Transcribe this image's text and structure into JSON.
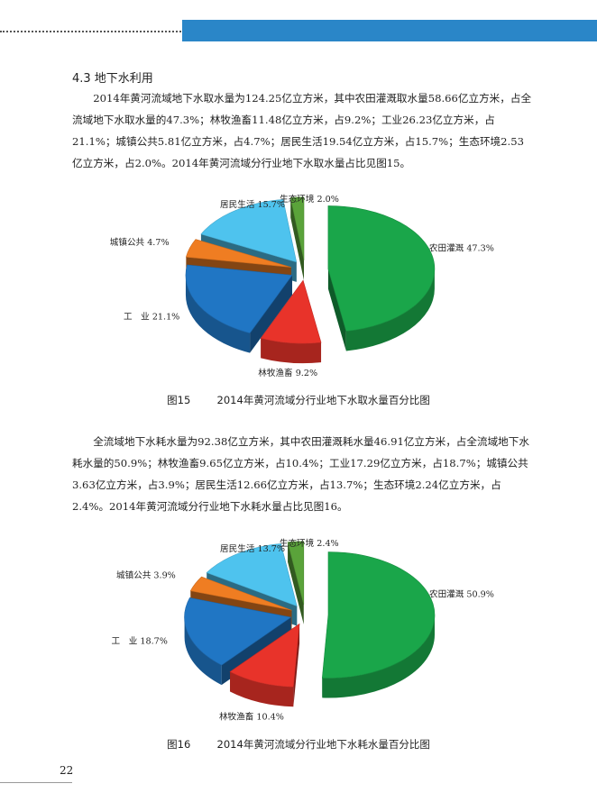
{
  "header": {
    "accent_color": "#2a86c8"
  },
  "section_title": "4.3 地下水利用",
  "paragraph1": "2014年黄河流域地下水取水量为124.25亿立方米，其中农田灌溉取水量58.66亿立方米，占全流域地下水取水量的47.3%；林牧渔畜11.48亿立方米，占9.2%；工业26.23亿立方米，占21.1%；城镇公共5.81亿立方米，占4.7%；居民生活19.54亿立方米，占15.7%；生态环境2.53亿立方米，占2.0%。2014年黄河流域分行业地下水取水量占比见图15。",
  "paragraph2": "全流域地下水耗水量为92.38亿立方米，其中农田灌溉耗水量46.91亿立方米，占全流域地下水耗水量的50.9%；林牧渔畜9.65亿立方米，占10.4%；工业17.29亿立方米，占18.7%；城镇公共3.63亿立方米，占3.9%；居民生活12.66亿立方米，占13.7%；生态环境2.24亿立方米，占2.4%。2014年黄河流域分行业地下水耗水量占比见图16。",
  "caption1": "图15        2014年黄河流域分行业地下水取水量百分比图",
  "caption2": "图16        2014年黄河流域分行业地下水耗水量百分比图",
  "page_number": "22",
  "chart_data": [
    {
      "type": "pie",
      "style": "3d-exploded",
      "categories": [
        "农田灌溉",
        "林牧渔畜",
        "工　业",
        "城镇公共",
        "居民生活",
        "生态环境"
      ],
      "values": [
        47.3,
        9.2,
        21.1,
        4.7,
        15.7,
        2.0
      ],
      "labels": [
        "农田灌溉 47.3%",
        "林牧渔畜 9.2%",
        "工　业 21.1%",
        "城镇公共 4.7%",
        "居民生活 15.7%",
        "生态环境 2.0%"
      ],
      "colors": [
        "#1aa64a",
        "#e8332a",
        "#2076c4",
        "#ef7d22",
        "#4ec3ee",
        "#5aa33a"
      ]
    },
    {
      "type": "pie",
      "style": "3d-exploded",
      "categories": [
        "农田灌溉",
        "林牧渔畜",
        "工　业",
        "城镇公共",
        "居民生活",
        "生态环境"
      ],
      "values": [
        50.9,
        10.4,
        18.7,
        3.9,
        13.7,
        2.4
      ],
      "labels": [
        "农田灌溉 50.9%",
        "林牧渔畜 10.4%",
        "工　业 18.7%",
        "城镇公共 3.9%",
        "居民生活 13.7%",
        "生态环境 2.4%"
      ],
      "colors": [
        "#1aa64a",
        "#e8332a",
        "#2076c4",
        "#ef7d22",
        "#4ec3ee",
        "#5aa33a"
      ]
    }
  ]
}
